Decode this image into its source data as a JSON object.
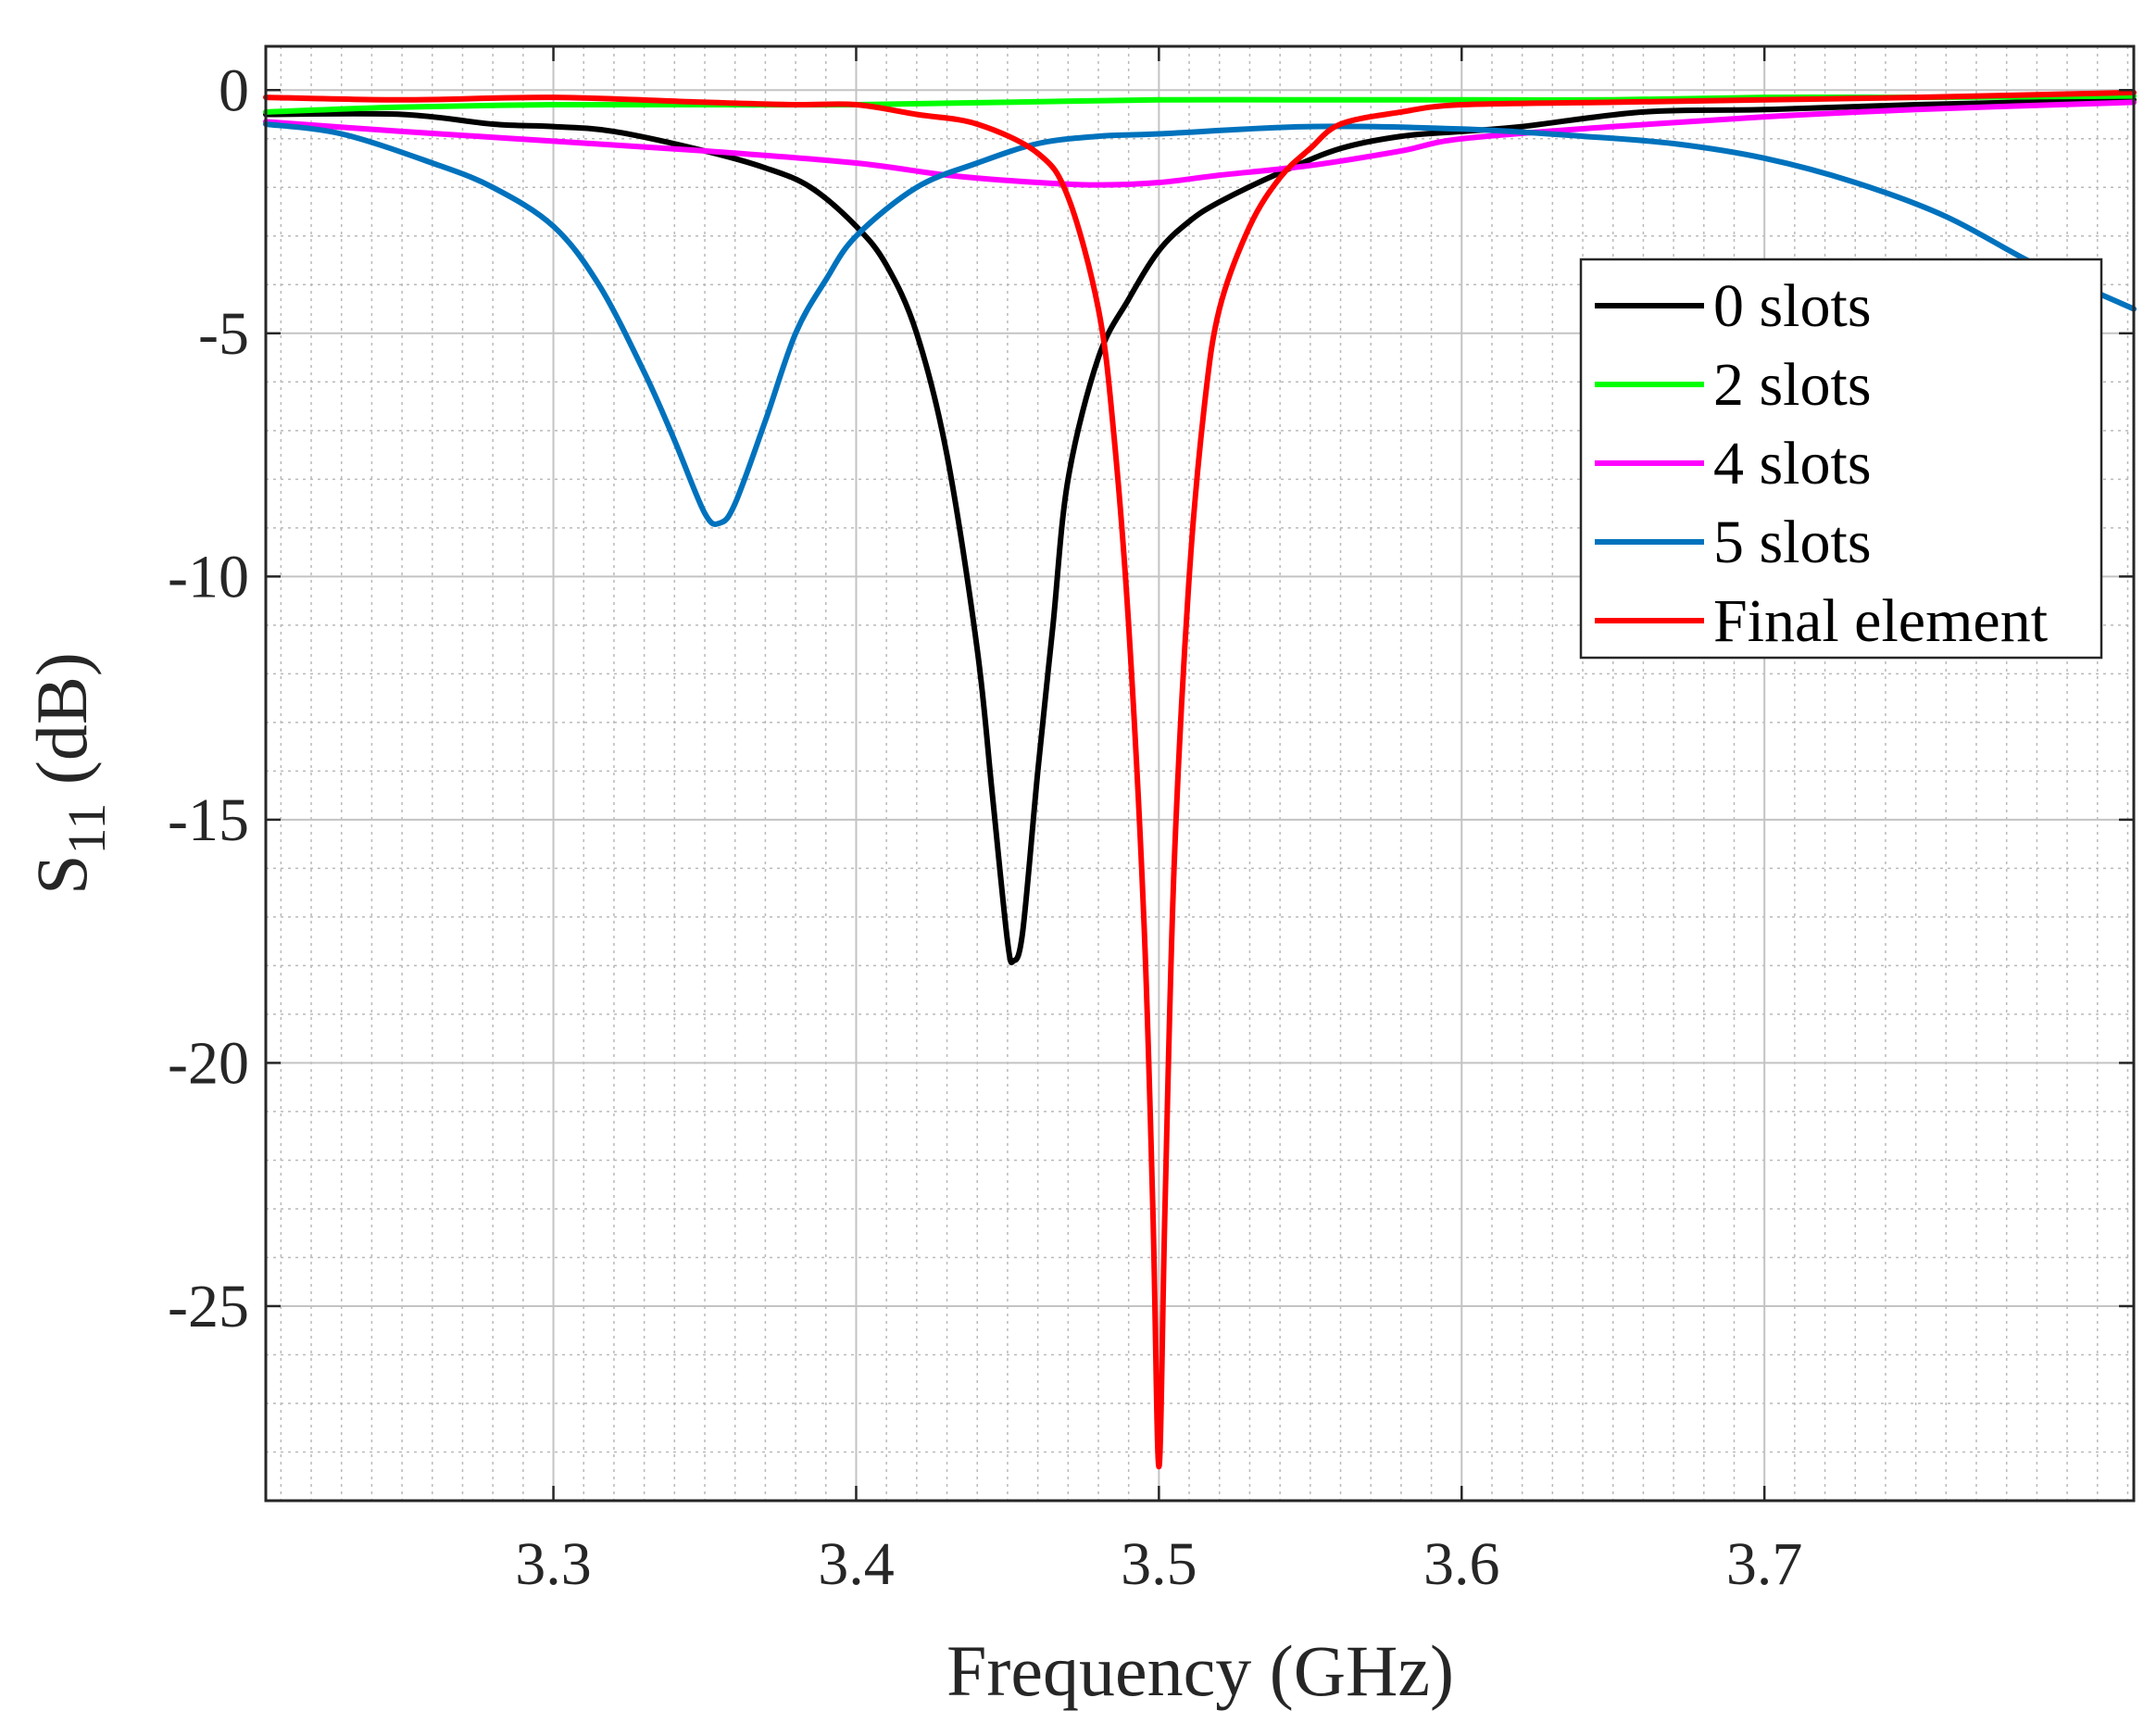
{
  "chart_data": {
    "type": "line",
    "xlabel": "Frequency (GHz)",
    "ylabel": {
      "main": "S",
      "sub": "11",
      "unit": " (dB)"
    },
    "xlim": [
      3.205,
      3.822
    ],
    "ylim": [
      -29,
      0.9
    ],
    "xticks": [
      3.3,
      3.4,
      3.5,
      3.6,
      3.7
    ],
    "xtick_labels": [
      "3.3",
      "3.4",
      "3.5",
      "3.6",
      "3.7"
    ],
    "yticks": [
      0,
      -5,
      -10,
      -15,
      -20,
      -25
    ],
    "ytick_labels": [
      "0",
      "-5",
      "-10",
      "-15",
      "-20",
      "-25"
    ],
    "minor_xstep": 0.01,
    "minor_ystep": 1,
    "grid": true,
    "legend_position": "right",
    "series": [
      {
        "name": "0 slots",
        "color": "#000000",
        "points": [
          [
            3.205,
            -0.5
          ],
          [
            3.25,
            -0.5
          ],
          [
            3.28,
            -0.7
          ],
          [
            3.3,
            -0.75
          ],
          [
            3.32,
            -0.85
          ],
          [
            3.35,
            -1.25
          ],
          [
            3.37,
            -1.6
          ],
          [
            3.385,
            -2.0
          ],
          [
            3.4,
            -2.8
          ],
          [
            3.41,
            -3.6
          ],
          [
            3.42,
            -5.0
          ],
          [
            3.43,
            -7.5
          ],
          [
            3.44,
            -11.5
          ],
          [
            3.445,
            -14.5
          ],
          [
            3.45,
            -17.5
          ],
          [
            3.452,
            -17.9
          ],
          [
            3.455,
            -17.3
          ],
          [
            3.46,
            -14.0
          ],
          [
            3.465,
            -11.0
          ],
          [
            3.47,
            -8.0
          ],
          [
            3.48,
            -5.5
          ],
          [
            3.49,
            -4.3
          ],
          [
            3.5,
            -3.3
          ],
          [
            3.51,
            -2.7
          ],
          [
            3.52,
            -2.3
          ],
          [
            3.54,
            -1.7
          ],
          [
            3.56,
            -1.2
          ],
          [
            3.58,
            -0.95
          ],
          [
            3.6,
            -0.85
          ],
          [
            3.62,
            -0.75
          ],
          [
            3.66,
            -0.45
          ],
          [
            3.7,
            -0.4
          ],
          [
            3.75,
            -0.3
          ],
          [
            3.822,
            -0.2
          ]
        ]
      },
      {
        "name": "2 slots",
        "color": "#00ff00",
        "points": [
          [
            3.205,
            -0.45
          ],
          [
            3.25,
            -0.35
          ],
          [
            3.3,
            -0.3
          ],
          [
            3.35,
            -0.3
          ],
          [
            3.4,
            -0.3
          ],
          [
            3.45,
            -0.25
          ],
          [
            3.5,
            -0.2
          ],
          [
            3.55,
            -0.2
          ],
          [
            3.6,
            -0.2
          ],
          [
            3.65,
            -0.2
          ],
          [
            3.7,
            -0.15
          ],
          [
            3.75,
            -0.15
          ],
          [
            3.822,
            -0.12
          ]
        ]
      },
      {
        "name": "4 slots",
        "color": "#ff00ff",
        "points": [
          [
            3.205,
            -0.65
          ],
          [
            3.25,
            -0.85
          ],
          [
            3.3,
            -1.05
          ],
          [
            3.35,
            -1.25
          ],
          [
            3.4,
            -1.5
          ],
          [
            3.43,
            -1.75
          ],
          [
            3.46,
            -1.9
          ],
          [
            3.48,
            -1.95
          ],
          [
            3.5,
            -1.9
          ],
          [
            3.52,
            -1.75
          ],
          [
            3.55,
            -1.55
          ],
          [
            3.58,
            -1.25
          ],
          [
            3.6,
            -1.0
          ],
          [
            3.65,
            -0.75
          ],
          [
            3.7,
            -0.55
          ],
          [
            3.75,
            -0.4
          ],
          [
            3.822,
            -0.25
          ]
        ]
      },
      {
        "name": "5 slots",
        "color": "#0072bd",
        "points": [
          [
            3.205,
            -0.7
          ],
          [
            3.23,
            -0.9
          ],
          [
            3.26,
            -1.5
          ],
          [
            3.28,
            -2.0
          ],
          [
            3.3,
            -2.8
          ],
          [
            3.315,
            -4.0
          ],
          [
            3.33,
            -5.8
          ],
          [
            3.34,
            -7.2
          ],
          [
            3.35,
            -8.7
          ],
          [
            3.355,
            -8.9
          ],
          [
            3.36,
            -8.5
          ],
          [
            3.37,
            -6.8
          ],
          [
            3.38,
            -5.0
          ],
          [
            3.39,
            -3.9
          ],
          [
            3.4,
            -3.0
          ],
          [
            3.42,
            -2.0
          ],
          [
            3.44,
            -1.5
          ],
          [
            3.46,
            -1.1
          ],
          [
            3.48,
            -0.95
          ],
          [
            3.5,
            -0.9
          ],
          [
            3.55,
            -0.75
          ],
          [
            3.6,
            -0.8
          ],
          [
            3.64,
            -0.95
          ],
          [
            3.67,
            -1.1
          ],
          [
            3.7,
            -1.4
          ],
          [
            3.73,
            -1.9
          ],
          [
            3.76,
            -2.6
          ],
          [
            3.79,
            -3.6
          ],
          [
            3.822,
            -4.5
          ]
        ]
      },
      {
        "name": "Final element",
        "color": "#ff0000",
        "points": [
          [
            3.205,
            -0.15
          ],
          [
            3.25,
            -0.2
          ],
          [
            3.3,
            -0.15
          ],
          [
            3.35,
            -0.25
          ],
          [
            3.38,
            -0.3
          ],
          [
            3.4,
            -0.3
          ],
          [
            3.42,
            -0.5
          ],
          [
            3.44,
            -0.7
          ],
          [
            3.46,
            -1.3
          ],
          [
            3.47,
            -2.2
          ],
          [
            3.48,
            -4.5
          ],
          [
            3.485,
            -7.0
          ],
          [
            3.49,
            -11.0
          ],
          [
            3.495,
            -17.0
          ],
          [
            3.498,
            -23.0
          ],
          [
            3.5,
            -28.3
          ],
          [
            3.502,
            -23.0
          ],
          [
            3.505,
            -16.0
          ],
          [
            3.51,
            -10.0
          ],
          [
            3.515,
            -6.5
          ],
          [
            3.52,
            -4.5
          ],
          [
            3.53,
            -2.8
          ],
          [
            3.54,
            -1.8
          ],
          [
            3.55,
            -1.2
          ],
          [
            3.56,
            -0.7
          ],
          [
            3.58,
            -0.45
          ],
          [
            3.6,
            -0.3
          ],
          [
            3.65,
            -0.25
          ],
          [
            3.7,
            -0.2
          ],
          [
            3.75,
            -0.15
          ],
          [
            3.822,
            -0.05
          ]
        ]
      }
    ]
  }
}
